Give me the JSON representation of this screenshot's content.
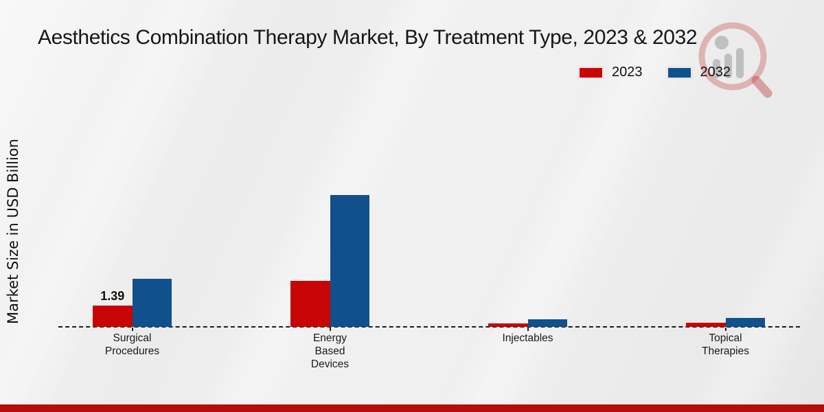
{
  "page": {
    "title": "Aesthetics Combination Therapy Market, By Treatment Type, 2023 & 2032"
  },
  "legend": {
    "items": [
      {
        "label": "2023",
        "color": "#c80505"
      },
      {
        "label": "2032",
        "color": "#10508c"
      }
    ]
  },
  "watermark": {
    "name": "magnifier-bar-chart-logo"
  },
  "footer": {
    "bar_color": "#b60c0c"
  },
  "chart_data": {
    "type": "bar",
    "title": "Aesthetics Combination Therapy Market, By Treatment Type, 2023 & 2032",
    "xlabel": "",
    "ylabel": "Market Size in USD Billion",
    "categories": [
      "Surgical Procedures",
      "Energy Based Devices",
      "Injectables",
      "Topical Therapies"
    ],
    "series": [
      {
        "name": "2023",
        "color": "#c80505",
        "values": [
          1.39,
          3.0,
          0.22,
          0.27
        ]
      },
      {
        "name": "2032",
        "color": "#10508c",
        "values": [
          3.14,
          8.6,
          0.49,
          0.58
        ]
      }
    ],
    "value_labels": [
      {
        "series_index": 0,
        "category_index": 0,
        "text": "1.39"
      }
    ],
    "ylim": [
      0,
      10
    ],
    "grid": false,
    "y_axis_ticks_visible": false,
    "baseline_style": "dashed",
    "legend_position": "top-right"
  }
}
